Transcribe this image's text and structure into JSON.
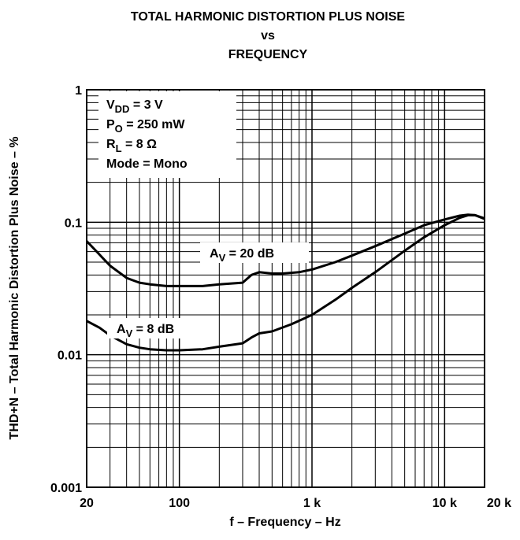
{
  "chart_data": {
    "type": "line",
    "title": [
      "TOTAL HARMONIC DISTORTION PLUS NOISE",
      "vs",
      "FREQUENCY"
    ],
    "x_label": "f – Frequency – Hz",
    "y_label": "THD+N – Total Harmonic Distortion Plus Noise – %",
    "xscale": "log",
    "yscale": "log",
    "grid": true,
    "xlim": [
      20,
      20000
    ],
    "ylim": [
      0.001,
      1
    ],
    "xticks": [
      20,
      100,
      {
        "value": 1000,
        "label": "1 k"
      },
      {
        "value": 10000,
        "label": "10 k"
      },
      {
        "value": 20000,
        "label": "20 k"
      }
    ],
    "yticks": [
      0.001,
      0.01,
      0.1,
      1
    ],
    "xminor": [
      30,
      40,
      50,
      60,
      70,
      80,
      90,
      200,
      300,
      400,
      500,
      600,
      700,
      800,
      900,
      2000,
      3000,
      4000,
      5000,
      6000,
      7000,
      8000,
      9000
    ],
    "yminor": [
      0.002,
      0.003,
      0.004,
      0.005,
      0.006,
      0.007,
      0.008,
      0.009,
      0.02,
      0.03,
      0.04,
      0.05,
      0.06,
      0.07,
      0.08,
      0.09,
      0.2,
      0.3,
      0.4,
      0.5,
      0.6,
      0.7,
      0.8,
      0.9
    ],
    "conditions": [
      {
        "text": "V",
        "sub": "DD",
        "rest": " = 3 V"
      },
      {
        "text": "P",
        "sub": "O",
        "rest": " = 250 mW"
      },
      {
        "text": "R",
        "sub": "L",
        "rest": " = 8 Ω"
      },
      {
        "text": "Mode = Mono"
      }
    ],
    "series": [
      {
        "name": "A",
        "name_sub": "V",
        "name_rest": " = 20 dB",
        "color": "#000000",
        "x": [
          20,
          25,
          30,
          40,
          50,
          60,
          80,
          100,
          150,
          200,
          300,
          350,
          400,
          500,
          600,
          800,
          1000,
          1500,
          2000,
          3000,
          5000,
          7000,
          10000,
          13000,
          15000,
          17000,
          20000
        ],
        "values": [
          0.072,
          0.057,
          0.047,
          0.038,
          0.035,
          0.034,
          0.033,
          0.033,
          0.033,
          0.034,
          0.035,
          0.04,
          0.042,
          0.041,
          0.041,
          0.042,
          0.044,
          0.05,
          0.056,
          0.066,
          0.082,
          0.095,
          0.105,
          0.112,
          0.114,
          0.113,
          0.106
        ]
      },
      {
        "name": "A",
        "name_sub": "V",
        "name_rest": " = 8 dB",
        "color": "#000000",
        "x": [
          20,
          25,
          30,
          40,
          50,
          60,
          80,
          100,
          150,
          200,
          300,
          350,
          400,
          500,
          700,
          1000,
          1500,
          2000,
          3000,
          5000,
          7000,
          10000,
          13000,
          15000,
          17000,
          20000
        ],
        "values": [
          0.018,
          0.016,
          0.014,
          0.012,
          0.0113,
          0.011,
          0.0108,
          0.0108,
          0.011,
          0.0115,
          0.0122,
          0.0135,
          0.0145,
          0.015,
          0.017,
          0.02,
          0.026,
          0.032,
          0.042,
          0.061,
          0.077,
          0.095,
          0.108,
          0.113,
          0.113,
          0.107
        ]
      }
    ]
  }
}
